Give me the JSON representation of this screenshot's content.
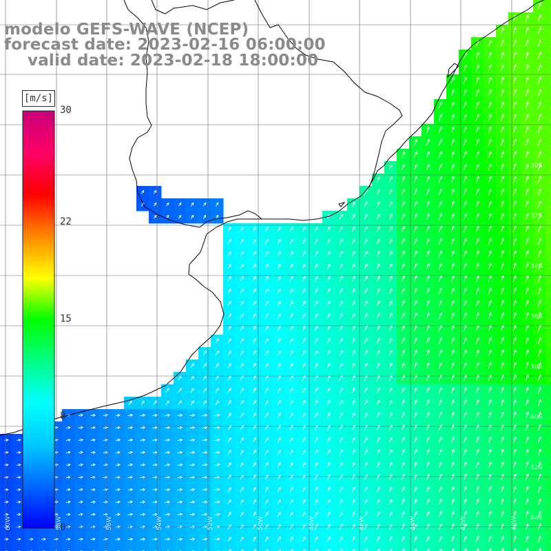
{
  "title": {
    "model": "modelo GEFS-WAVE (NCEP)",
    "forecast": "forecast date: 2023-02-16 06:00:00",
    "valid": "valid date: 2023-02-18 18:00:00"
  },
  "colorbar": {
    "units": "[m/s]",
    "min": 0,
    "max": 30,
    "ticks": [
      "30",
      "22",
      "15",
      "8",
      "0"
    ],
    "tick_values": [
      30,
      22,
      15,
      8,
      0
    ],
    "colors": [
      "#0000ff",
      "#0066ff",
      "#00c8ff",
      "#00ffff",
      "#00ff88",
      "#00ff00",
      "#ffff00",
      "#ff8800",
      "#ff0000",
      "#ff0066",
      "#c8007a"
    ]
  },
  "map": {
    "variable": "wind speed with direction arrows",
    "land_color": "#ffffff",
    "coast_color": "#000000",
    "arrow_color": "#ffffff",
    "lon_labels": [
      "60W",
      "58W",
      "56W",
      "54W",
      "52W",
      "50W",
      "48W",
      "46W",
      "44W",
      "42W",
      "40W"
    ],
    "lat_labels": [
      "30S",
      "32S",
      "34S",
      "36S",
      "38S",
      "40S",
      "42S",
      "44S"
    ]
  }
}
